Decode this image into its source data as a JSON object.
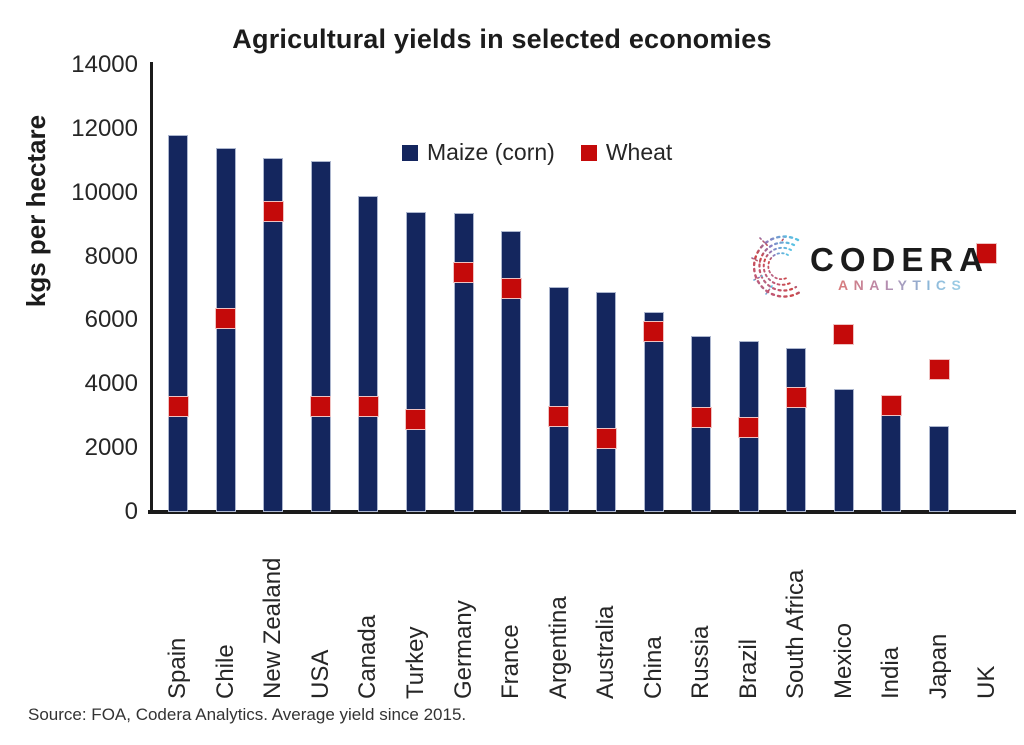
{
  "title": "Agricultural yields in selected economies",
  "y_axis_title": "kgs per hectare",
  "source_note": "Source: FOA, Codera Analytics. Average yield since 2015.",
  "logo": {
    "name": "CODERA",
    "sub": "ANALYTICS"
  },
  "legend": [
    {
      "label": "Maize (corn)",
      "color": "#14265E"
    },
    {
      "label": "Wheat",
      "color": "#C40A0A"
    }
  ],
  "colors": {
    "maize_bar": "#14265E",
    "wheat_marker": "#C40A0A",
    "axis_line": "#1b1b1b",
    "text": "#262626"
  },
  "chart_data": {
    "type": "bar",
    "title": "Agricultural yields in selected economies",
    "xlabel": "",
    "ylabel": "kgs per hectare",
    "ylim": [
      0,
      14000
    ],
    "yticks": [
      0,
      2000,
      4000,
      6000,
      8000,
      10000,
      12000,
      14000
    ],
    "grid": false,
    "legend_position": "inside-top-center",
    "categories": [
      "Spain",
      "Chile",
      "New Zealand",
      "USA",
      "Canada",
      "Turkey",
      "Germany",
      "France",
      "Argentina",
      "Australia",
      "China",
      "Russia",
      "Brazil",
      "South Africa",
      "Mexico",
      "India",
      "Japan",
      "UK"
    ],
    "series": [
      {
        "name": "Maize (corn)",
        "mark": "bar",
        "color": "#14265E",
        "values": [
          11800,
          11400,
          11100,
          11000,
          9900,
          9400,
          9350,
          8800,
          7050,
          6900,
          6250,
          5500,
          5350,
          5150,
          3850,
          3100,
          2700,
          null
        ]
      },
      {
        "name": "Wheat",
        "mark": "square",
        "color": "#C40A0A",
        "values": [
          3300,
          6050,
          9400,
          3300,
          3300,
          2900,
          7500,
          7000,
          3000,
          2300,
          5650,
          2950,
          2650,
          3600,
          5550,
          3350,
          4450,
          8100
        ]
      }
    ]
  }
}
